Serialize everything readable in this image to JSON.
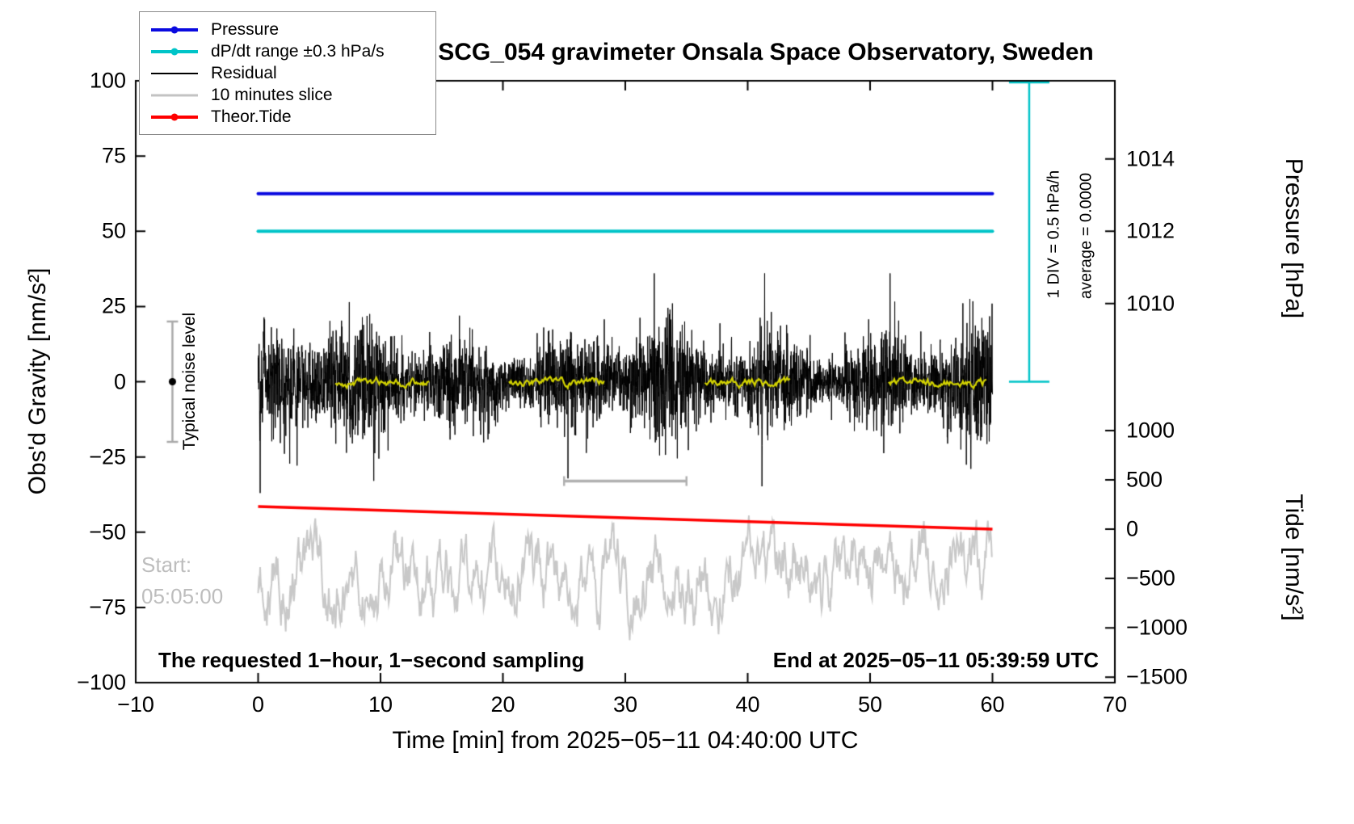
{
  "chart_data": {
    "type": "line",
    "title": "SCG_054 gravimeter Onsala Space Observatory, Sweden",
    "xlabel": "Time [min] from 2025−05−11 04:40:00 UTC",
    "ylabel_left": "Obs'd Gravity [nm/s²]",
    "ylabel_right_pressure": "Pressure [hPa]",
    "ylabel_right_tide": "Tide [nm/s²]",
    "xlim": [
      -10,
      70
    ],
    "ylim_left": [
      -100,
      100
    ],
    "x_ticks": [
      -10,
      0,
      10,
      20,
      30,
      40,
      50,
      60,
      70
    ],
    "y_ticks_left": [
      -100,
      -75,
      -50,
      -25,
      0,
      25,
      50,
      75,
      100
    ],
    "pressure_ticks": [
      1014,
      1012,
      1010
    ],
    "tide_ticks": [
      1000,
      500,
      0,
      -500,
      -1000,
      -1500
    ],
    "grid": false,
    "legend_position": "top-left",
    "legend": {
      "items": [
        {
          "label": "Pressure",
          "color": "#0a0ae0",
          "marker": true,
          "lw": 4
        },
        {
          "label": "dP/dt range ±0.3 hPa/s",
          "color": "#00c4c8",
          "marker": true,
          "lw": 4
        },
        {
          "label": "Residual",
          "color": "#000000",
          "marker": false,
          "lw": 2
        },
        {
          "label": "10 minutes slice",
          "color": "#c3c3c3",
          "marker": false,
          "lw": 3
        },
        {
          "label": "Theor.Tide",
          "color": "#ff0000",
          "marker": true,
          "lw": 4
        }
      ]
    },
    "series": [
      {
        "name": "10 minutes slice",
        "style": "meander",
        "color": "#c8c8c8",
        "mean_gravity": -65,
        "mean_tide": -490,
        "amplitude_gravity": 16,
        "x_range": [
          0,
          60
        ],
        "lw": 2
      },
      {
        "name": "Theor.Tide",
        "style": "line",
        "color": "#ff0000",
        "points_gravity": [
          [
            0,
            -41.5
          ],
          [
            60,
            -49.0
          ]
        ],
        "points_tide": [
          [
            0,
            229
          ],
          [
            60,
            0
          ]
        ],
        "lw": 3.5
      },
      {
        "name": "Residual",
        "style": "noise",
        "color": "#000000",
        "mean": 0,
        "sigma": 7.2,
        "max_abs": 37,
        "x_range": [
          0,
          60
        ],
        "sampling": "1-second",
        "lw": 1
      },
      {
        "name": "Residual smoothed overlay",
        "style": "smooth_segments",
        "color": "#d2d200",
        "mean": 0,
        "segments": [
          [
            6.3,
            14.0
          ],
          [
            20.5,
            28.3
          ],
          [
            36.5,
            43.5
          ],
          [
            51.5,
            59.5
          ]
        ],
        "lw": 2.2
      },
      {
        "name": "Pressure",
        "style": "hline",
        "color": "#0a0ae0",
        "gravity_y": 62.5,
        "pressure_hpa": 1013.0,
        "x_range": [
          0,
          60
        ],
        "lw": 4
      },
      {
        "name": "dP/dt range ±0.3 hPa/s",
        "style": "hline",
        "color": "#00c4c8",
        "gravity_y": 50,
        "pressure_hpa": 1012.0,
        "x_range": [
          0,
          60
        ],
        "lw": 4
      }
    ],
    "annotations": {
      "noise_bar": {
        "label": "Typical noise level",
        "x_min": -7,
        "gravity_range": [
          -20,
          20
        ],
        "dot_gravity": 0,
        "color": "#aaaaaa",
        "dot_color": "#000000"
      },
      "scale_bar": {
        "x_range_min": [
          25,
          35
        ],
        "gravity_y": -33,
        "color": "#b0b0b0"
      },
      "div_bar": {
        "label_div": "1 DIV = 0.5 hPa/h",
        "label_avg": "average = 0.0000",
        "x_min": 63,
        "gravity_range": [
          0,
          100
        ],
        "color": "#00c4c8"
      },
      "start_label": {
        "line1": "Start:",
        "line2": "05:05:00",
        "color": "#bdbdbd"
      },
      "footer_left": "The requested 1−hour, 1−second sampling",
      "footer_right": "End at 2025−05−11 05:39:59 UTC"
    }
  }
}
